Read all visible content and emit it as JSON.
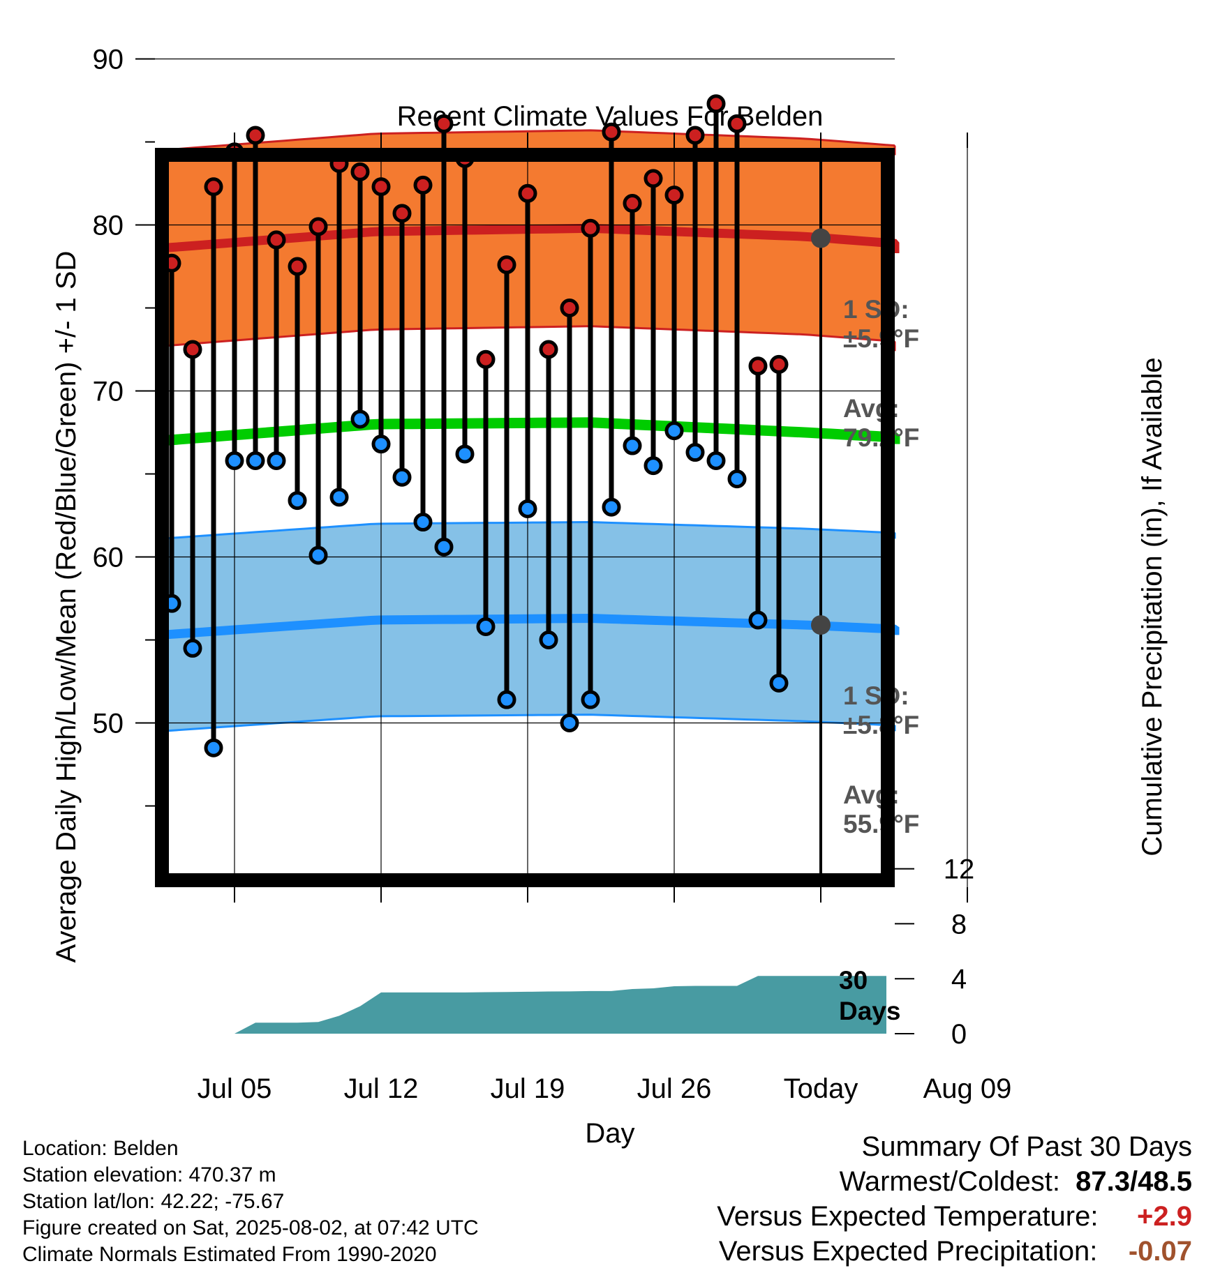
{
  "chart_data": {
    "type": "line",
    "title": "Recent Climate Values For Belden",
    "xlabel": "Day",
    "ylabel": "Average Daily High/Low/Mean (Red/Blue/Green) +/- 1 SD",
    "y2label": "Cumulative Precipitation (in), If Available",
    "ylim": [
      40,
      92.5
    ],
    "y2lim": [
      0,
      17.8
    ],
    "x_ticks": [
      "Jul 05",
      "Jul 12",
      "Jul 19",
      "Jul 26",
      "Today",
      "Aug 09"
    ],
    "y_ticks": [
      50,
      60,
      70,
      80,
      90
    ],
    "y2_ticks": [
      0,
      4,
      8,
      12
    ],
    "grid": true,
    "days": [
      "Jul 02",
      "Jul 03",
      "Jul 04",
      "Jul 05",
      "Jul 06",
      "Jul 07",
      "Jul 08",
      "Jul 09",
      "Jul 10",
      "Jul 11",
      "Jul 12",
      "Jul 13",
      "Jul 14",
      "Jul 15",
      "Jul 16",
      "Jul 17",
      "Jul 18",
      "Jul 19",
      "Jul 20",
      "Jul 21",
      "Jul 22",
      "Jul 23",
      "Jul 24",
      "Jul 25",
      "Jul 26",
      "Jul 27",
      "Jul 28",
      "Jul 29",
      "Jul 30",
      "Jul 31",
      "Aug 01"
    ],
    "series": [
      {
        "name": "High",
        "color": "#cc2020",
        "values": [
          77.7,
          72.5,
          82.3,
          84.4,
          85.4,
          79.1,
          77.5,
          79.9,
          83.7,
          83.2,
          82.3,
          80.7,
          82.4,
          86.1,
          84.0,
          71.9,
          77.6,
          81.9,
          72.5,
          75.0,
          79.8,
          85.6,
          81.3,
          82.8,
          81.8,
          85.4,
          87.3,
          86.1,
          71.5,
          71.6,
          null
        ]
      },
      {
        "name": "Low",
        "color": "#1e90ff",
        "values": [
          57.2,
          54.5,
          48.5,
          65.8,
          65.8,
          65.8,
          63.4,
          60.1,
          63.6,
          68.3,
          66.8,
          64.8,
          62.1,
          60.6,
          66.2,
          55.8,
          51.4,
          62.9,
          55.0,
          50.0,
          51.4,
          63.0,
          66.7,
          65.5,
          67.6,
          66.3,
          65.8,
          64.7,
          56.2,
          52.4,
          null
        ]
      },
      {
        "name": "Cumulative Precipitation",
        "color": "#489ba2",
        "values": [
          0,
          0,
          0,
          0,
          0.8,
          0.8,
          0.8,
          0.85,
          1.3,
          2.0,
          3.0,
          3.0,
          3.0,
          3.0,
          3.0,
          3.02,
          3.03,
          3.05,
          3.07,
          3.08,
          3.1,
          3.1,
          3.25,
          3.3,
          3.45,
          3.48,
          3.48,
          3.48,
          4.2,
          4.2,
          4.2
        ]
      }
    ],
    "normals": {
      "avg_high": [
        78.6,
        79.6,
        79.8,
        79.3,
        78.3
      ],
      "avg_low": [
        55.3,
        56.2,
        56.3,
        55.9,
        55.3
      ],
      "avg_mean": [
        67.0,
        68.0,
        68.1,
        67.5,
        66.8
      ],
      "sd_high": 5.9,
      "sd_low": 5.8
    },
    "annotations": {
      "high_sd_label": "1 SD:",
      "high_sd_value": "±5.9°F",
      "high_avg_label": "Avg:",
      "high_avg_value": "79.2°F",
      "low_sd_label": "1 SD:",
      "low_sd_value": "±5.8°F",
      "low_avg_label": "Avg:",
      "low_avg_value": "55.9°F",
      "days_label_1": "30",
      "days_label_2": "Days"
    },
    "colors": {
      "high_band": "#f47a30",
      "high_line": "#cc2020",
      "low_band": "#85c1e7",
      "low_line": "#1e90ff",
      "mean_line": "#00cc00",
      "precip": "#489ba2",
      "today_marker": "#444444"
    }
  },
  "info": {
    "location": "Location: Belden",
    "elevation": "Station elevation: 470.37 m",
    "latlon": "Station lat/lon: 42.22; -75.67",
    "created": "Figure created on Sat, 2025-08-02, at 07:42 UTC",
    "normals": "Climate Normals Estimated From 1990-2020"
  },
  "summary": {
    "title": "Summary Of Past 30 Days",
    "warmest_label": "Warmest/Coldest:",
    "warmest_value": "87.3/48.5",
    "temp_label": "Versus Expected Temperature:",
    "temp_value": "+2.9",
    "temp_color": "#cc2020",
    "precip_label": "Versus Expected Precipitation:",
    "precip_value": "-0.07",
    "precip_color": "#a0522d"
  }
}
